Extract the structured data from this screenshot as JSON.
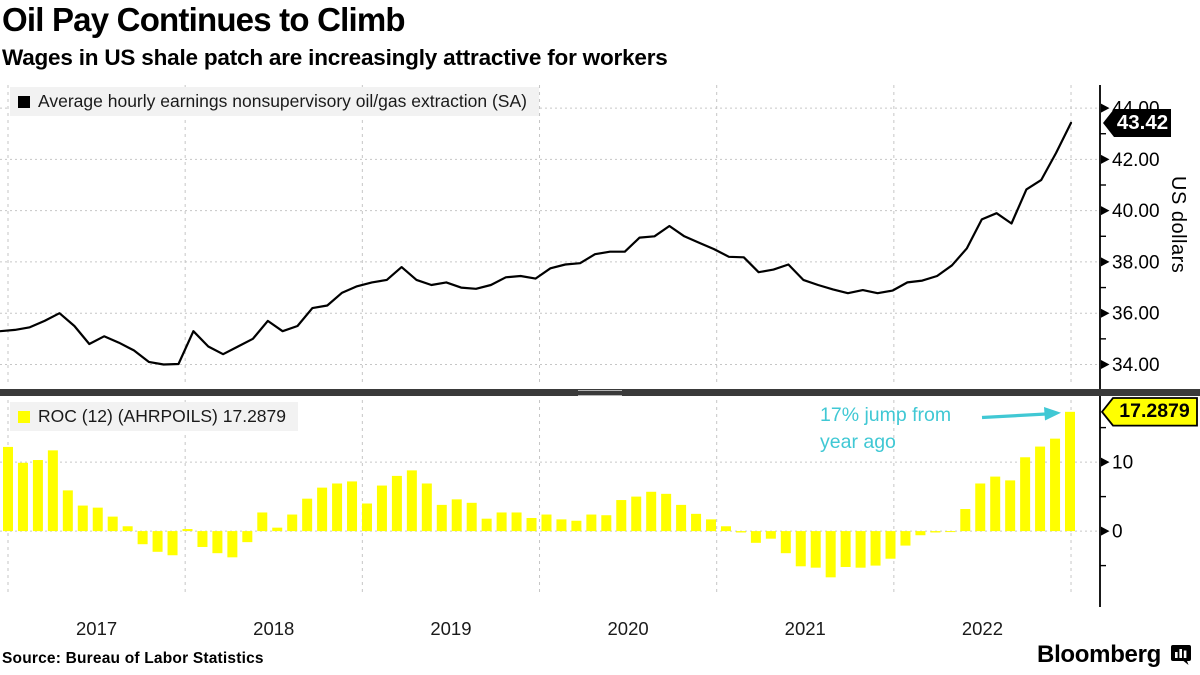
{
  "header": {
    "title": "Oil Pay Continues to Climb",
    "subtitle": "Wages in US shale patch are increasingly attractive for workers"
  },
  "source": "Source: Bureau of Labor Statistics",
  "branding": {
    "logo": "Bloomberg"
  },
  "colors": {
    "line_series": "#000000",
    "bar_series": "#FFFF00",
    "annotation": "#40C8D4",
    "top_tag_bg": "#000000",
    "top_tag_text": "#FFFFFF",
    "bottom_tag_bg": "#FFFF00",
    "bottom_tag_border": "#000000",
    "axis": "#000000",
    "grid": "#C6C6C6",
    "legend_bg": "#F2F2F2",
    "divider": "#3A3A3A",
    "year_label": "#1A1A1A"
  },
  "top_panel": {
    "legend": "Average hourly earnings nonsupervisory oil/gas extraction (SA)",
    "axis_label": "US dollars",
    "last_value_label": "43.42"
  },
  "bottom_panel": {
    "legend": "ROC (12) (AHRPOILS) 17.2879",
    "last_value_label": "17.2879",
    "annotation": {
      "line1": "17% jump from",
      "line2": "year ago"
    }
  },
  "x_axis": {
    "years": [
      "2017",
      "2018",
      "2019",
      "2020",
      "2021",
      "2022"
    ]
  },
  "chart_data": [
    {
      "type": "line",
      "panel": "top",
      "name": "Average hourly earnings nonsupervisory oil/gas extraction (SA)",
      "unit": "US dollars",
      "freq": "monthly",
      "x_start": "2016-12",
      "x_end": "2022-12",
      "last_value": 43.42,
      "ylim": [
        33.2,
        44.9
      ],
      "yticks": [
        {
          "value": 34,
          "label": "34.00"
        },
        {
          "value": 36,
          "label": "36.00"
        },
        {
          "value": 38,
          "label": "38.00"
        },
        {
          "value": 40,
          "label": "40.00"
        },
        {
          "value": 42,
          "label": "42.00"
        },
        {
          "value": 44,
          "label": "44.00"
        }
      ],
      "yticks_minor": [
        35,
        37,
        39,
        41,
        43
      ],
      "values": [
        35.3,
        35.35,
        35.45,
        35.7,
        36.0,
        35.5,
        34.8,
        35.1,
        34.85,
        34.55,
        34.1,
        34.0,
        34.02,
        35.3,
        34.7,
        34.4,
        34.7,
        35.0,
        35.7,
        35.3,
        35.5,
        36.2,
        36.3,
        36.8,
        37.05,
        37.2,
        37.3,
        37.8,
        37.3,
        37.1,
        37.2,
        37.0,
        36.95,
        37.1,
        37.4,
        37.45,
        37.35,
        37.75,
        37.9,
        37.95,
        38.3,
        38.4,
        38.4,
        38.95,
        39.0,
        39.4,
        39.0,
        38.75,
        38.5,
        38.2,
        38.18,
        37.6,
        37.7,
        37.9,
        37.3,
        37.1,
        36.93,
        36.78,
        36.9,
        36.78,
        36.88,
        37.2,
        37.27,
        37.45,
        37.87,
        38.53,
        39.66,
        39.9,
        39.5,
        40.83,
        41.2,
        42.25,
        43.42
      ]
    },
    {
      "type": "bar",
      "panel": "bottom",
      "name": "ROC (12) (AHRPOILS)",
      "unit": "percent",
      "freq": "monthly",
      "x_start": "2017-01",
      "x_end": "2022-12",
      "last_value": 17.2879,
      "ylim": [
        -11,
        19
      ],
      "yticks": [
        {
          "value": 0,
          "label": "0"
        },
        {
          "value": 10,
          "label": "10"
        }
      ],
      "yticks_minor": [
        -5,
        5,
        15
      ],
      "values": [
        12.2,
        9.9,
        10.3,
        11.7,
        5.9,
        3.7,
        3.4,
        2.1,
        0.7,
        -1.9,
        -3.0,
        -3.5,
        0.3,
        -2.3,
        -3.2,
        -3.8,
        -1.6,
        2.7,
        0.5,
        2.4,
        4.7,
        6.3,
        6.9,
        7.2,
        4.0,
        6.6,
        8.0,
        8.8,
        6.9,
        3.8,
        4.6,
        4.1,
        1.8,
        2.7,
        2.7,
        1.9,
        2.4,
        1.7,
        1.5,
        2.4,
        2.3,
        4.5,
        5.0,
        5.7,
        5.4,
        3.8,
        2.5,
        1.7,
        0.7,
        -0.2,
        -1.7,
        -1.1,
        -3.2,
        -5.1,
        -5.3,
        -6.7,
        -5.2,
        -5.3,
        -5.0,
        -4.0,
        -2.1,
        -0.6,
        -0.2,
        -0.1,
        3.2,
        6.9,
        7.9,
        7.35,
        10.7,
        12.25,
        13.4,
        17.2879
      ]
    }
  ]
}
